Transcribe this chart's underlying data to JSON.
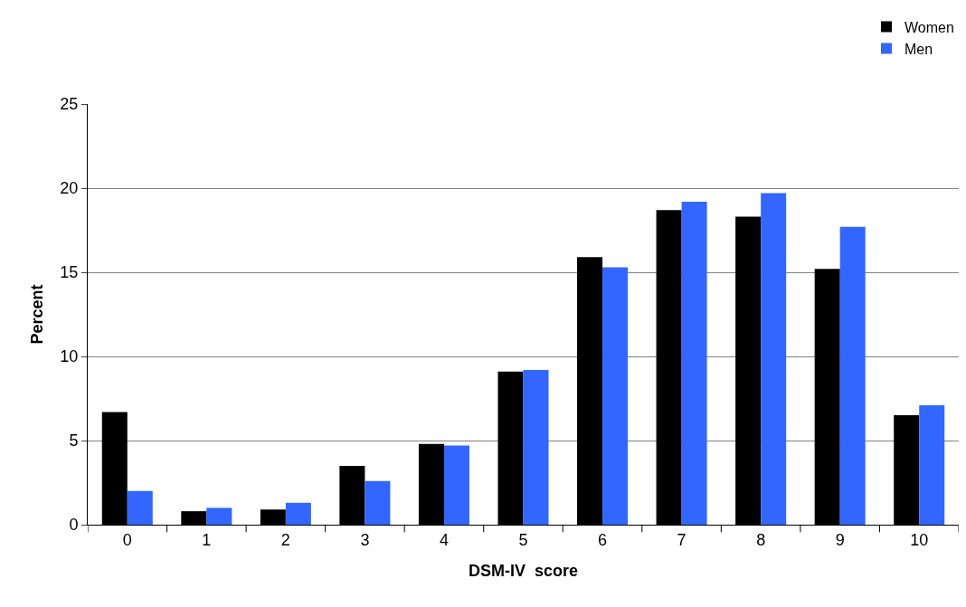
{
  "chart_data": {
    "type": "bar",
    "xlabel": "DSM-IV  score",
    "ylabel": "Percent",
    "categories": [
      "0",
      "1",
      "2",
      "3",
      "4",
      "5",
      "6",
      "7",
      "8",
      "9",
      "10"
    ],
    "series": [
      {
        "name": "Women",
        "color": "#000000",
        "values": [
          6.7,
          0.8,
          0.9,
          3.5,
          4.8,
          9.1,
          15.9,
          18.7,
          18.3,
          15.2,
          6.5
        ]
      },
      {
        "name": "Men",
        "color": "#3366ff",
        "values": [
          2.0,
          1.0,
          1.3,
          2.6,
          4.7,
          9.2,
          15.3,
          19.2,
          19.7,
          17.7,
          7.1
        ]
      }
    ],
    "ylim": [
      0,
      25
    ],
    "yticks": [
      0,
      5,
      10,
      15,
      20,
      25
    ],
    "grid": "y",
    "legend": "top right"
  }
}
